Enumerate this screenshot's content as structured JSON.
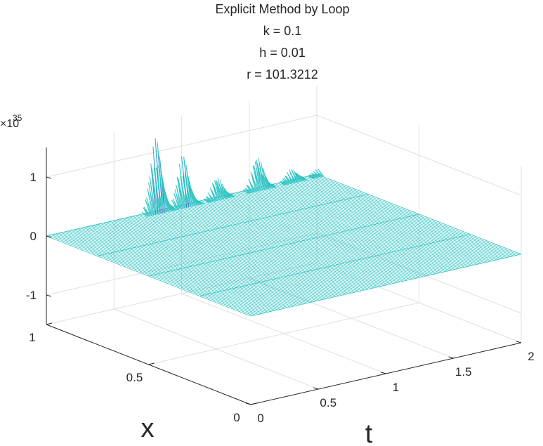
{
  "chart_data": {
    "type": "surface-3d",
    "title": [
      "Explicit Method by Loop",
      "k = 0.1",
      "h = 0.01",
      "r = 101.3212"
    ],
    "xlabel": "t",
    "ylabel": "x",
    "zlabel": "",
    "xlim": [
      0,
      2
    ],
    "ylim": [
      0,
      1
    ],
    "zlim": [
      -1.5,
      1.5
    ],
    "z_exponent_label": "×10",
    "z_exponent": "35",
    "x_ticks": [
      "0",
      "0.5",
      "1",
      "1.5",
      "2"
    ],
    "x_tick_values": [
      0,
      0.5,
      1,
      1.5,
      2
    ],
    "y_ticks": [
      "0",
      "0.5",
      "1"
    ],
    "y_tick_values": [
      0,
      0.5,
      1
    ],
    "z_ticks": [
      "-1",
      "0",
      "1"
    ],
    "z_tick_values": [
      -1,
      0,
      1
    ],
    "grid": true,
    "mesh_color": "#2ec4c4",
    "peak_color": "#3a7ec8",
    "surface_description_values": {
      "flat_value": 0,
      "spike_region": "x near 1, t from about 0.7 to 2",
      "spikes": [
        {
          "t": 0.8,
          "x": 1.0,
          "z": 1.25
        },
        {
          "t": 1.0,
          "x": 1.0,
          "z": 0.85
        },
        {
          "t": 1.25,
          "x": 1.0,
          "z": 0.35
        },
        {
          "t": 1.55,
          "x": 1.0,
          "z": 0.55
        },
        {
          "t": 1.8,
          "x": 1.0,
          "z": 0.2
        },
        {
          "t": 2.0,
          "x": 1.0,
          "z": 0.1
        }
      ]
    },
    "colors": {
      "grid": "#e0e0e0",
      "axis": "#262626"
    }
  }
}
